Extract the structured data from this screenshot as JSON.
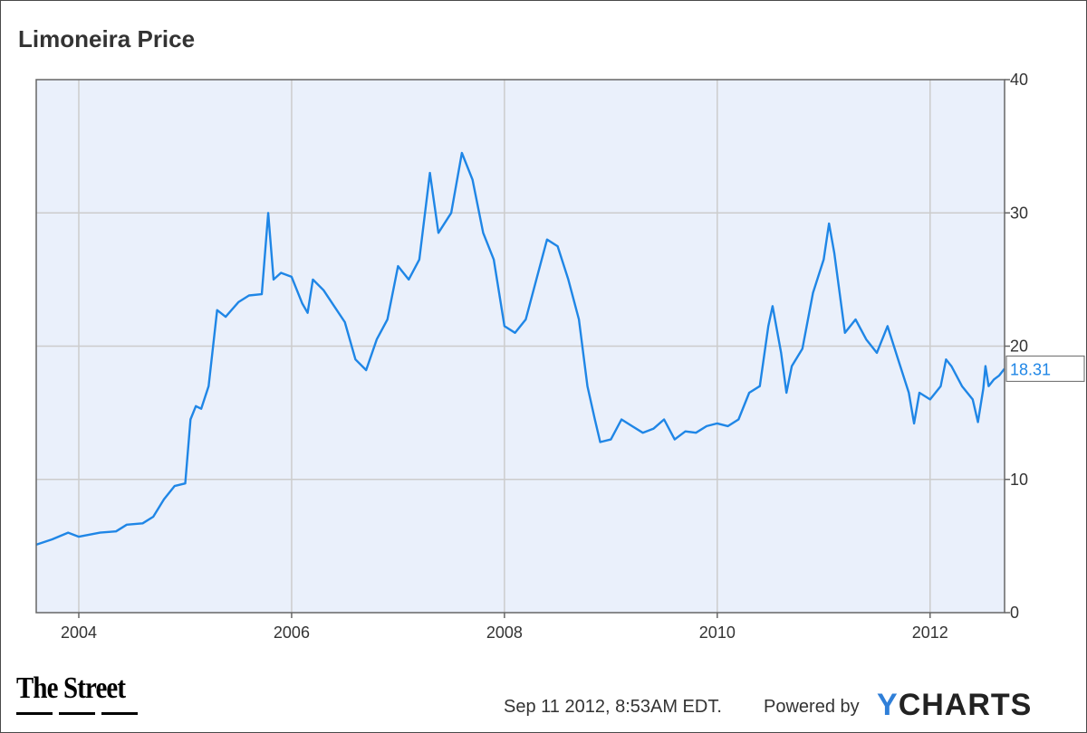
{
  "title": "Limoneira Price",
  "footer": {
    "date": "Sep 11 2012, 8:53AM EDT.",
    "powered_by": "Powered by",
    "brand_y": "Y",
    "brand_rest": "CHARTS",
    "publisher_logo": "The Street"
  },
  "colors": {
    "line": "#1f86e6",
    "plot_bg": "#eaf0fb",
    "grid": "#cccccc",
    "axis": "#666666"
  },
  "chart_data": {
    "type": "line",
    "title": "Limoneira Price",
    "xlabel": "",
    "ylabel": "",
    "xlim": [
      2003.6,
      2012.7
    ],
    "ylim": [
      0,
      40
    ],
    "x_ticks": [
      2004,
      2006,
      2008,
      2010,
      2012
    ],
    "x_tick_labels": [
      "2004",
      "2006",
      "2008",
      "2010",
      "2012"
    ],
    "y_ticks": [
      0,
      10,
      20,
      30,
      40
    ],
    "y_tick_labels": [
      "0",
      "10",
      "20",
      "30",
      "40"
    ],
    "y_axis_side": "right",
    "grid": true,
    "last_value_label": "18.31",
    "series": [
      {
        "points": [
          [
            2003.6,
            5.1
          ],
          [
            2003.75,
            5.5
          ],
          [
            2003.9,
            6.0
          ],
          [
            2004.0,
            5.7
          ],
          [
            2004.2,
            6.0
          ],
          [
            2004.35,
            6.1
          ],
          [
            2004.45,
            6.6
          ],
          [
            2004.6,
            6.7
          ],
          [
            2004.7,
            7.2
          ],
          [
            2004.8,
            8.5
          ],
          [
            2004.9,
            9.5
          ],
          [
            2005.0,
            9.7
          ],
          [
            2005.05,
            14.5
          ],
          [
            2005.1,
            15.5
          ],
          [
            2005.15,
            15.3
          ],
          [
            2005.22,
            17.0
          ],
          [
            2005.3,
            22.7
          ],
          [
            2005.38,
            22.2
          ],
          [
            2005.5,
            23.3
          ],
          [
            2005.6,
            23.8
          ],
          [
            2005.72,
            23.9
          ],
          [
            2005.78,
            30.0
          ],
          [
            2005.83,
            25.0
          ],
          [
            2005.9,
            25.5
          ],
          [
            2006.0,
            25.2
          ],
          [
            2006.1,
            23.2
          ],
          [
            2006.15,
            22.5
          ],
          [
            2006.2,
            25.0
          ],
          [
            2006.3,
            24.2
          ],
          [
            2006.4,
            23.0
          ],
          [
            2006.5,
            21.8
          ],
          [
            2006.6,
            19.0
          ],
          [
            2006.7,
            18.2
          ],
          [
            2006.8,
            20.5
          ],
          [
            2006.9,
            22.0
          ],
          [
            2007.0,
            26.0
          ],
          [
            2007.1,
            25.0
          ],
          [
            2007.2,
            26.5
          ],
          [
            2007.3,
            33.0
          ],
          [
            2007.38,
            28.5
          ],
          [
            2007.5,
            30.0
          ],
          [
            2007.6,
            34.5
          ],
          [
            2007.7,
            32.5
          ],
          [
            2007.8,
            28.5
          ],
          [
            2007.9,
            26.5
          ],
          [
            2008.0,
            21.5
          ],
          [
            2008.1,
            21.0
          ],
          [
            2008.2,
            22.0
          ],
          [
            2008.3,
            25.0
          ],
          [
            2008.4,
            28.0
          ],
          [
            2008.5,
            27.5
          ],
          [
            2008.6,
            25.0
          ],
          [
            2008.7,
            22.0
          ],
          [
            2008.78,
            17.0
          ],
          [
            2008.85,
            14.5
          ],
          [
            2008.9,
            12.8
          ],
          [
            2009.0,
            13.0
          ],
          [
            2009.1,
            14.5
          ],
          [
            2009.2,
            14.0
          ],
          [
            2009.3,
            13.5
          ],
          [
            2009.4,
            13.8
          ],
          [
            2009.5,
            14.5
          ],
          [
            2009.6,
            13.0
          ],
          [
            2009.7,
            13.6
          ],
          [
            2009.8,
            13.5
          ],
          [
            2009.9,
            14.0
          ],
          [
            2010.0,
            14.2
          ],
          [
            2010.1,
            14.0
          ],
          [
            2010.2,
            14.5
          ],
          [
            2010.3,
            16.5
          ],
          [
            2010.4,
            17.0
          ],
          [
            2010.48,
            21.5
          ],
          [
            2010.52,
            23.0
          ],
          [
            2010.6,
            19.5
          ],
          [
            2010.65,
            16.5
          ],
          [
            2010.7,
            18.5
          ],
          [
            2010.8,
            19.8
          ],
          [
            2010.9,
            24.0
          ],
          [
            2011.0,
            26.5
          ],
          [
            2011.05,
            29.2
          ],
          [
            2011.1,
            27.0
          ],
          [
            2011.2,
            21.0
          ],
          [
            2011.3,
            22.0
          ],
          [
            2011.4,
            20.5
          ],
          [
            2011.5,
            19.5
          ],
          [
            2011.6,
            21.5
          ],
          [
            2011.7,
            19.0
          ],
          [
            2011.8,
            16.5
          ],
          [
            2011.85,
            14.2
          ],
          [
            2011.9,
            16.5
          ],
          [
            2012.0,
            16.0
          ],
          [
            2012.1,
            17.0
          ],
          [
            2012.15,
            19.0
          ],
          [
            2012.2,
            18.5
          ],
          [
            2012.3,
            17.0
          ],
          [
            2012.4,
            16.0
          ],
          [
            2012.45,
            14.3
          ],
          [
            2012.5,
            16.8
          ],
          [
            2012.52,
            18.5
          ],
          [
            2012.55,
            17.0
          ],
          [
            2012.6,
            17.5
          ],
          [
            2012.65,
            17.8
          ],
          [
            2012.7,
            18.31
          ]
        ]
      }
    ]
  }
}
